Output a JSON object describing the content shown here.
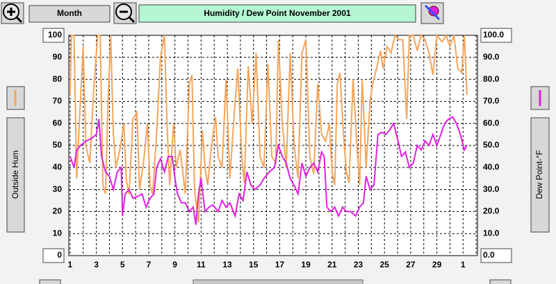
{
  "toolbar": {
    "period": "Month"
  },
  "chart_data": {
    "type": "line",
    "title": "Humidity  /  Dew Point  November 2001",
    "xlim": [
      0.9,
      32.1
    ],
    "xticks": [
      1,
      3,
      5,
      7,
      9,
      11,
      13,
      15,
      17,
      19,
      21,
      23,
      25,
      27,
      29,
      {
        "value": 31,
        "label": "1"
      }
    ],
    "x_minor_ticks": [
      2,
      4,
      6,
      8,
      10,
      12,
      14,
      16,
      18,
      20,
      22,
      24,
      26,
      28,
      30,
      32
    ],
    "ylim": [
      0,
      100
    ],
    "yticks": [
      0,
      10,
      20,
      30,
      40,
      50,
      60,
      70,
      80,
      90,
      100
    ],
    "y2lim": [
      0,
      100
    ],
    "y2ticks": [
      {
        "value": 0,
        "label": "0.0"
      },
      {
        "value": 10,
        "label": "10.0"
      },
      {
        "value": 20,
        "label": "20.0"
      },
      {
        "value": 30,
        "label": "30.0"
      },
      {
        "value": 40,
        "label": "40.0"
      },
      {
        "value": 50,
        "label": "50.0"
      },
      {
        "value": 60,
        "label": "60.0"
      },
      {
        "value": 70,
        "label": "70.0"
      },
      {
        "value": 80,
        "label": "80.0"
      },
      {
        "value": 90,
        "label": "90.0"
      },
      {
        "value": 100,
        "label": "100.0"
      }
    ],
    "grid": true,
    "series": [
      {
        "name": "Outside Hum",
        "color": "#f4a55a",
        "x": [
          1.0,
          1.1,
          1.3,
          1.5,
          1.7,
          2.0,
          2.2,
          2.5,
          2.8,
          3.1,
          3.3,
          3.5,
          3.7,
          3.9,
          4.1,
          4.3,
          4.5,
          4.8,
          5.1,
          5.3,
          5.5,
          5.8,
          6.1,
          6.3,
          6.6,
          6.9,
          7.1,
          7.3,
          7.6,
          7.9,
          8.2,
          8.4,
          8.6,
          8.9,
          9.1,
          9.4,
          9.8,
          10.1,
          10.3,
          10.5,
          10.8,
          11.1,
          11.3,
          11.5,
          11.8,
          12.1,
          12.3,
          12.6,
          12.9,
          13.2,
          13.5,
          13.8,
          14.1,
          14.3,
          14.6,
          14.9,
          15.2,
          15.5,
          15.8,
          16.1,
          16.4,
          16.7,
          16.9,
          17.2,
          17.5,
          17.8,
          18.1,
          18.4,
          18.7,
          19.0,
          19.3,
          19.6,
          19.9,
          20.2,
          20.5,
          20.8,
          21.0,
          21.2,
          21.4,
          21.6,
          21.9,
          22.1,
          22.3,
          22.6,
          22.9,
          23.1,
          23.3,
          23.6,
          23.9,
          24.1,
          24.4,
          24.7,
          24.9,
          25.2,
          25.5,
          25.8,
          26.1,
          26.4,
          26.7,
          26.9,
          27.2,
          27.5,
          27.8,
          28.1,
          28.4,
          28.7,
          29.0,
          29.4,
          29.7,
          30.0,
          30.3,
          30.6,
          30.9,
          31.1,
          31.3
        ],
        "values": [
          73,
          100,
          100,
          35,
          60,
          95,
          50,
          42,
          75,
          100,
          100,
          32,
          28,
          70,
          100,
          55,
          40,
          48,
          60,
          34,
          28,
          62,
          65,
          30,
          42,
          60,
          32,
          28,
          55,
          90,
          100,
          60,
          32,
          60,
          40,
          48,
          28,
          78,
          82,
          30,
          15,
          57,
          40,
          32,
          50,
          63,
          45,
          40,
          80,
          35,
          62,
          85,
          45,
          33,
          86,
          60,
          92,
          45,
          40,
          87,
          45,
          42,
          98,
          60,
          40,
          92,
          50,
          35,
          92,
          98,
          45,
          37,
          78,
          55,
          52,
          60,
          38,
          32,
          78,
          83,
          52,
          38,
          33,
          80,
          50,
          32,
          80,
          40,
          70,
          78,
          85,
          93,
          85,
          95,
          92,
          100,
          98,
          98,
          62,
          100,
          100,
          93,
          100,
          98,
          92,
          82,
          100,
          97,
          100,
          95,
          100,
          85,
          83,
          100,
          73
        ]
      },
      {
        "name": "Dew Point-°F",
        "color": "#e020e0",
        "axis": "y2",
        "x": [
          1.0,
          1.3,
          1.5,
          1.8,
          2.2,
          2.6,
          3.0,
          3.2,
          3.4,
          3.7,
          4.0,
          4.3,
          4.6,
          4.9,
          5.0,
          5.2,
          5.5,
          5.8,
          6.2,
          6.5,
          6.8,
          7.1,
          7.4,
          7.6,
          7.9,
          8.2,
          8.5,
          8.8,
          9.0,
          9.2,
          9.5,
          9.8,
          10.1,
          10.4,
          10.6,
          10.8,
          11.0,
          11.3,
          11.6,
          11.9,
          12.3,
          12.6,
          12.9,
          13.2,
          13.6,
          13.9,
          14.2,
          14.5,
          14.8,
          15.1,
          15.5,
          15.8,
          16.2,
          16.6,
          16.9,
          17.2,
          17.5,
          17.8,
          18.1,
          18.4,
          18.7,
          19.0,
          19.3,
          19.6,
          19.9,
          20.2,
          20.4,
          20.6,
          20.9,
          21.2,
          21.5,
          21.8,
          22.1,
          22.4,
          22.8,
          23.1,
          23.4,
          23.6,
          23.9,
          24.2,
          24.5,
          24.8,
          25.1,
          25.4,
          25.7,
          26.0,
          26.3,
          26.6,
          26.9,
          27.2,
          27.5,
          27.8,
          28.1,
          28.4,
          28.7,
          29.0,
          29.3,
          29.6,
          29.9,
          30.2,
          30.5,
          30.8,
          31.1,
          31.3
        ],
        "values": [
          45,
          40,
          48,
          50,
          52,
          53,
          55,
          62,
          45,
          38,
          36,
          30,
          38,
          40,
          18,
          28,
          30,
          26,
          27,
          28,
          22,
          26,
          28,
          40,
          44,
          38,
          45,
          45,
          35,
          28,
          24,
          24,
          20,
          22,
          14,
          28,
          35,
          20,
          22,
          23,
          20,
          25,
          22,
          24,
          18,
          28,
          25,
          38,
          32,
          30,
          32,
          35,
          38,
          40,
          50,
          45,
          42,
          35,
          32,
          28,
          42,
          36,
          40,
          42,
          38,
          47,
          45,
          22,
          20,
          22,
          18,
          22,
          20,
          20,
          18,
          22,
          24,
          36,
          30,
          32,
          55,
          56,
          55,
          57,
          60,
          53,
          45,
          47,
          40,
          42,
          50,
          48,
          52,
          50,
          55,
          50,
          55,
          60,
          62,
          63,
          60,
          55,
          48,
          50
        ]
      }
    ]
  }
}
